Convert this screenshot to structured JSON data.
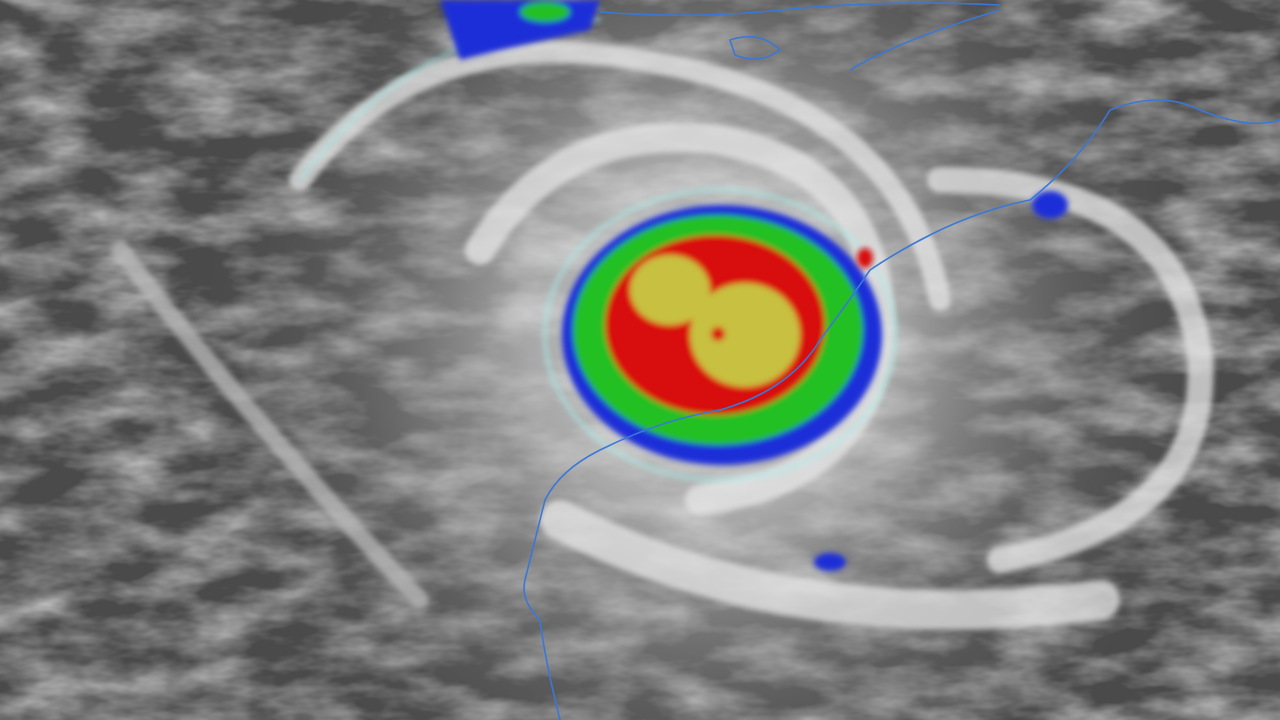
{
  "image": {
    "subject": "cyclone",
    "colors": {
      "background_gray": "#4a4a4a",
      "cloud_white": "#e8e8e8",
      "cloud_cyan": "#a8f0ec",
      "ring_blue": "#1a2fd8",
      "ring_green": "#22c022",
      "ring_red": "#d81010",
      "core_yellow": "#c8c040",
      "coastline": "#3a78d8"
    }
  }
}
